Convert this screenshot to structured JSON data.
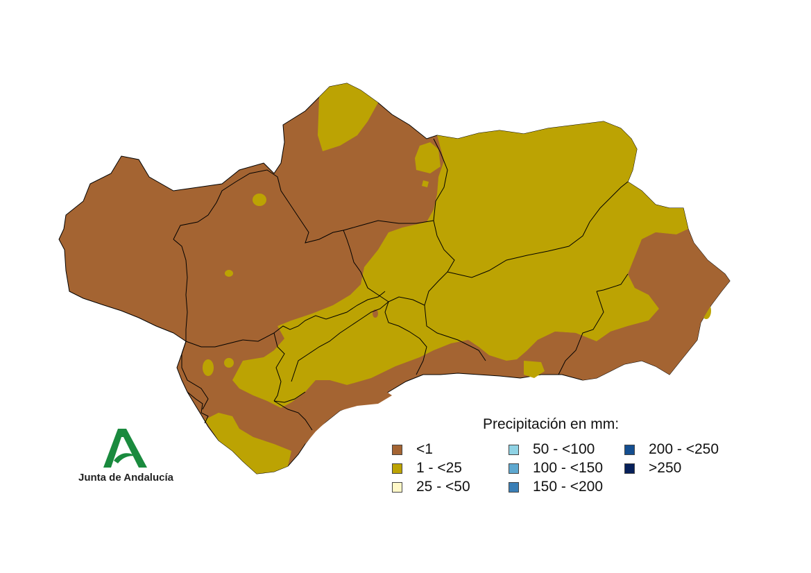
{
  "legend": {
    "title": "Precipitación en mm:",
    "items": [
      {
        "label": "<1",
        "color": "#a46432"
      },
      {
        "label": "1 - <25",
        "color": "#bca303"
      },
      {
        "label": "25 - <50",
        "color": "#fff8c8"
      },
      {
        "label": "50 - <100",
        "color": "#8fd2e4"
      },
      {
        "label": "100 - <150",
        "color": "#5ea8d0"
      },
      {
        "label": "150 - <200",
        "color": "#3a7fb6"
      },
      {
        "label": "200 - <250",
        "color": "#144e90"
      },
      {
        "label": ">250",
        "color": "#06205a"
      }
    ]
  },
  "logo": {
    "text": "Junta de Andalucía",
    "color": "#1a8a3e",
    "icon": "junta-andalucia-logo"
  }
}
